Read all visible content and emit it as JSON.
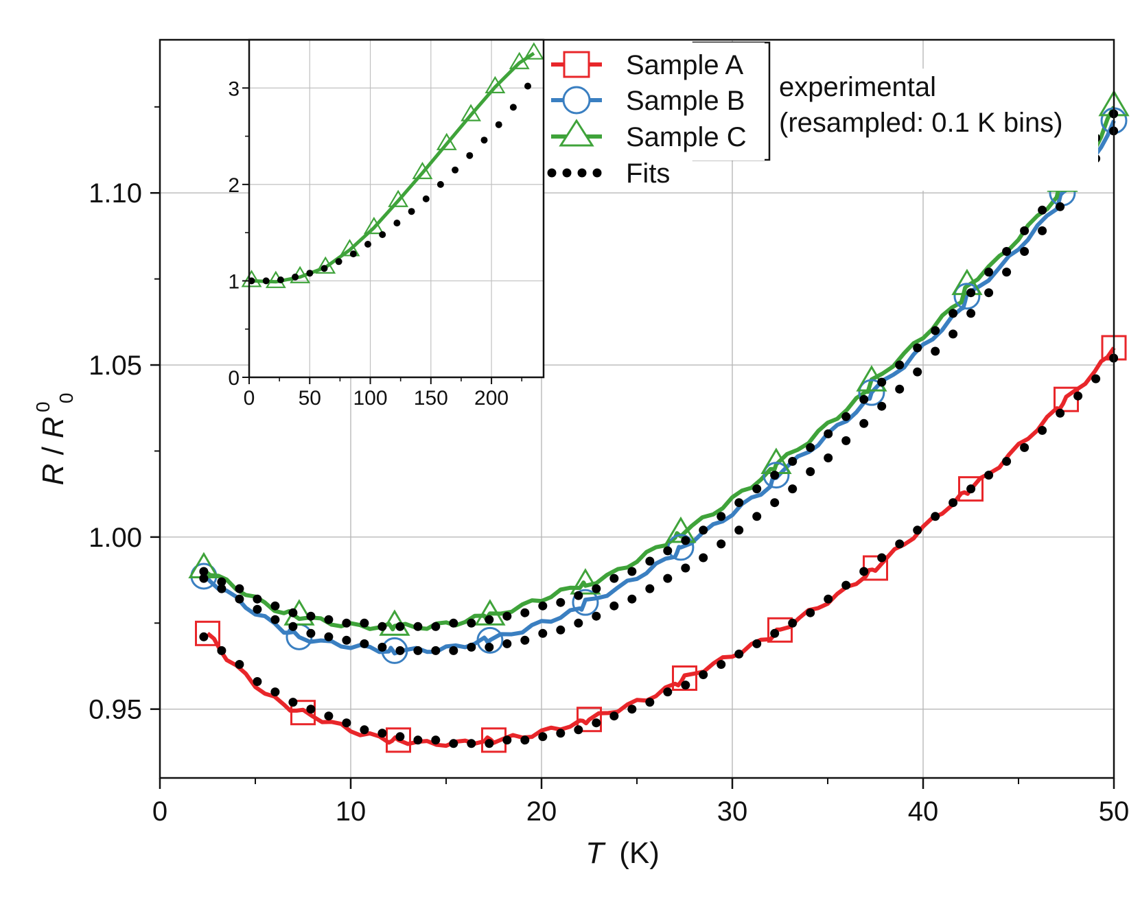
{
  "chart_data": [
    {
      "type": "line",
      "xlabel": "T",
      "xlabel_unit": "(K)",
      "ylabel_main": "R",
      "ylabel_slash": "/",
      "ylabel_denominator": "R",
      "ylabel_superscript": "0",
      "ylabel_subscript": "0",
      "xlim": [
        0,
        50
      ],
      "ylim": [
        0.93,
        1.1445
      ],
      "xticks": [
        0,
        10,
        20,
        30,
        40,
        50
      ],
      "xtick_labels": [
        "0",
        "10",
        "20",
        "30",
        "40",
        "50"
      ],
      "yticks": [
        0.95,
        1.0,
        1.05,
        1.1
      ],
      "ytick_labels": [
        "0.95",
        "1.00",
        "1.05",
        "1.10"
      ],
      "grid": true,
      "legend_position": "top-center",
      "legend": [
        {
          "label": "Sample A",
          "marker": "square",
          "color": "#e8262a"
        },
        {
          "label": "Sample B",
          "marker": "circle",
          "color": "#3a7fc1"
        },
        {
          "label": "Sample C",
          "marker": "triangle",
          "color": "#3fa33a"
        },
        {
          "label": "Fits",
          "marker": "dots",
          "color": "#000000"
        }
      ],
      "annotation": [
        "experimental",
        "(resampled: 0.1 K bins)"
      ],
      "series": [
        {
          "name": "Sample A",
          "color": "#e8262a",
          "marker": "square",
          "x": [
            2.5,
            3.5,
            5,
            6.5,
            7.5,
            9,
            10.5,
            12,
            12.5,
            14,
            15.5,
            17,
            17.5,
            19,
            20.5,
            22,
            22.5,
            24,
            25.5,
            27,
            27.5,
            29,
            30.5,
            32,
            32.5,
            34,
            35.5,
            37,
            37.5,
            39,
            40.5,
            42,
            42.5,
            44,
            45.5,
            47,
            47.5,
            49,
            50
          ],
          "y": [
            0.972,
            0.965,
            0.957,
            0.951,
            0.949,
            0.946,
            0.943,
            0.941,
            0.941,
            0.94,
            0.94,
            0.941,
            0.941,
            0.942,
            0.944,
            0.946,
            0.947,
            0.95,
            0.953,
            0.957,
            0.959,
            0.963,
            0.967,
            0.971,
            0.973,
            0.978,
            0.983,
            0.989,
            0.991,
            0.998,
            1.005,
            1.012,
            1.014,
            1.021,
            1.029,
            1.037,
            1.04,
            1.048,
            1.055
          ]
        },
        {
          "name": "Sample B",
          "color": "#3a7fc1",
          "marker": "circle",
          "x": [
            2.2,
            3.5,
            5,
            6.5,
            7.3,
            9,
            10.5,
            12,
            12.3,
            14,
            15.5,
            17,
            17.3,
            19,
            20.5,
            22,
            22.3,
            24,
            25.5,
            27,
            27.3,
            29,
            30.5,
            32,
            32.3,
            34,
            35.5,
            37,
            37.3,
            39,
            40.5,
            42,
            42.3,
            44,
            45.5,
            47,
            47.3,
            49,
            50
          ],
          "y": [
            0.989,
            0.984,
            0.978,
            0.973,
            0.971,
            0.969,
            0.968,
            0.967,
            0.967,
            0.967,
            0.968,
            0.97,
            0.97,
            0.973,
            0.976,
            0.979,
            0.981,
            0.985,
            0.99,
            0.995,
            0.997,
            1.003,
            1.009,
            1.015,
            1.018,
            1.025,
            1.032,
            1.039,
            1.042,
            1.05,
            1.058,
            1.066,
            1.07,
            1.078,
            1.087,
            1.096,
            1.1,
            1.11,
            1.121
          ]
        },
        {
          "name": "Sample C",
          "color": "#3fa33a",
          "marker": "triangle",
          "x": [
            2.2,
            3.5,
            5,
            6.5,
            7.3,
            9,
            10.5,
            12,
            12.3,
            14,
            15.5,
            17,
            17.3,
            19,
            20.5,
            22,
            22.3,
            24,
            25.5,
            27,
            27.3,
            29,
            30.5,
            32,
            32.3,
            34,
            35.5,
            37,
            37.3,
            39,
            40.5,
            42,
            42.3,
            44,
            45.5,
            47,
            47.3,
            49,
            50
          ],
          "y": [
            0.991,
            0.987,
            0.982,
            0.978,
            0.977,
            0.975,
            0.974,
            0.974,
            0.974,
            0.974,
            0.975,
            0.977,
            0.977,
            0.98,
            0.983,
            0.986,
            0.986,
            0.99,
            0.995,
            1.0,
            1.001,
            1.007,
            1.013,
            1.019,
            1.021,
            1.028,
            1.035,
            1.042,
            1.045,
            1.053,
            1.061,
            1.069,
            1.073,
            1.081,
            1.09,
            1.099,
            1.103,
            1.113,
            1.125
          ]
        }
      ],
      "fits": {
        "name": "Fits",
        "color": "#000000",
        "A": [
          0.971,
          0.967,
          0.963,
          0.958,
          0.955,
          0.952,
          0.95,
          0.948,
          0.946,
          0.944,
          0.943,
          0.942,
          0.941,
          0.941,
          0.94,
          0.94,
          0.94,
          0.941,
          0.941,
          0.942,
          0.943,
          0.944,
          0.946,
          0.948,
          0.95,
          0.952,
          0.955,
          0.957,
          0.96,
          0.963,
          0.966,
          0.969,
          0.972,
          0.975,
          0.978,
          0.982,
          0.986,
          0.99,
          0.994,
          0.998,
          1.002,
          1.006,
          1.01,
          1.014,
          1.018,
          1.022,
          1.026,
          1.031,
          1.036,
          1.041,
          1.046,
          1.052
        ],
        "B": [
          0.988,
          0.985,
          0.982,
          0.979,
          0.976,
          0.974,
          0.972,
          0.971,
          0.97,
          0.969,
          0.968,
          0.967,
          0.967,
          0.967,
          0.967,
          0.968,
          0.968,
          0.969,
          0.97,
          0.972,
          0.973,
          0.975,
          0.977,
          0.98,
          0.982,
          0.985,
          0.988,
          0.991,
          0.994,
          0.998,
          1.002,
          1.006,
          1.01,
          1.014,
          1.019,
          1.023,
          1.028,
          1.033,
          1.038,
          1.043,
          1.048,
          1.054,
          1.059,
          1.065,
          1.071,
          1.077,
          1.083,
          1.089,
          1.096,
          1.103,
          1.11,
          1.118
        ],
        "C": [
          0.99,
          0.987,
          0.985,
          0.982,
          0.98,
          0.978,
          0.977,
          0.976,
          0.975,
          0.975,
          0.974,
          0.974,
          0.974,
          0.974,
          0.975,
          0.975,
          0.976,
          0.977,
          0.978,
          0.98,
          0.981,
          0.983,
          0.985,
          0.988,
          0.99,
          0.993,
          0.996,
          0.999,
          1.002,
          1.006,
          1.01,
          1.014,
          1.018,
          1.022,
          1.026,
          1.03,
          1.035,
          1.04,
          1.045,
          1.05,
          1.055,
          1.06,
          1.065,
          1.071,
          1.077,
          1.083,
          1.089,
          1.095,
          1.102,
          1.109,
          1.116,
          1.123
        ],
        "x_start": 2.3,
        "x_step": 0.935
      }
    },
    {
      "type": "line",
      "title": "",
      "xlim": [
        0,
        243
      ],
      "ylim": [
        0,
        3.5
      ],
      "xticks": [
        0,
        50,
        100,
        150,
        200
      ],
      "xtick_labels": [
        "0",
        "50",
        "100",
        "150",
        "200"
      ],
      "yticks": [
        0,
        1,
        2,
        3
      ],
      "ytick_labels": [
        "0",
        "1",
        "2",
        "3"
      ],
      "grid": true,
      "series": [
        {
          "name": "Sample C",
          "color": "#3fa33a",
          "marker": "triangle",
          "x": [
            2,
            22,
            42,
            63,
            83,
            103,
            123,
            143,
            163,
            183,
            203,
            223,
            235
          ],
          "y": [
            1.0,
            0.99,
            1.04,
            1.14,
            1.32,
            1.55,
            1.83,
            2.12,
            2.42,
            2.72,
            3.01,
            3.26,
            3.36
          ]
        },
        {
          "name": "Fits",
          "color": "#000000",
          "marker": "dots",
          "x": [
            2,
            14,
            26,
            38,
            50,
            62,
            74,
            86,
            98,
            110,
            122,
            134,
            146,
            158,
            170,
            182,
            194,
            206,
            218,
            230
          ],
          "y": [
            1.0,
            1.0,
            1.01,
            1.04,
            1.08,
            1.13,
            1.2,
            1.28,
            1.38,
            1.48,
            1.6,
            1.72,
            1.85,
            2.0,
            2.15,
            2.3,
            2.46,
            2.62,
            2.8,
            3.02
          ]
        }
      ]
    }
  ]
}
